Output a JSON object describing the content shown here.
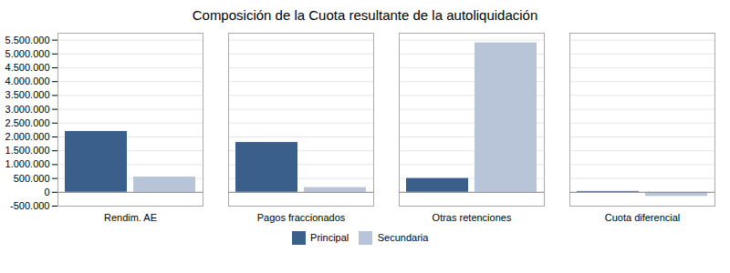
{
  "chart_data": {
    "type": "bar",
    "title": "Composición de la Cuota resultante de la autoliquidación",
    "categories": [
      "Rendim. AE",
      "Pagos fraccionados",
      "Otras retenciones",
      "Cuota diferencial"
    ],
    "series": [
      {
        "name": "Principal",
        "color": "#3A5F8A",
        "values": [
          2200000,
          1800000,
          500000,
          30000
        ]
      },
      {
        "name": "Secundaria",
        "color": "#B8C4D8",
        "values": [
          550000,
          170000,
          5400000,
          -150000
        ]
      }
    ],
    "ylim": [
      -500000,
      5750000
    ],
    "yticks": [
      {
        "value": -500000,
        "label": "-500.000"
      },
      0,
      {
        "value": 500000,
        "label": "500.000"
      },
      {
        "value": 1000000,
        "label": "1.000.000"
      },
      {
        "value": 1500000,
        "label": "1.500.000"
      },
      {
        "value": 2000000,
        "label": "2.000.000"
      },
      {
        "value": 2500000,
        "label": "2.500.000"
      },
      {
        "value": 3000000,
        "label": "3.000.000"
      },
      {
        "value": 3500000,
        "label": "3.500.000"
      },
      {
        "value": 4000000,
        "label": "4.000.000"
      },
      {
        "value": 4500000,
        "label": "4.500.000"
      },
      {
        "value": 5000000,
        "label": "5.000.000"
      },
      {
        "value": 5500000,
        "label": "5.500.000"
      }
    ],
    "grid": true,
    "legend": "lower center"
  }
}
